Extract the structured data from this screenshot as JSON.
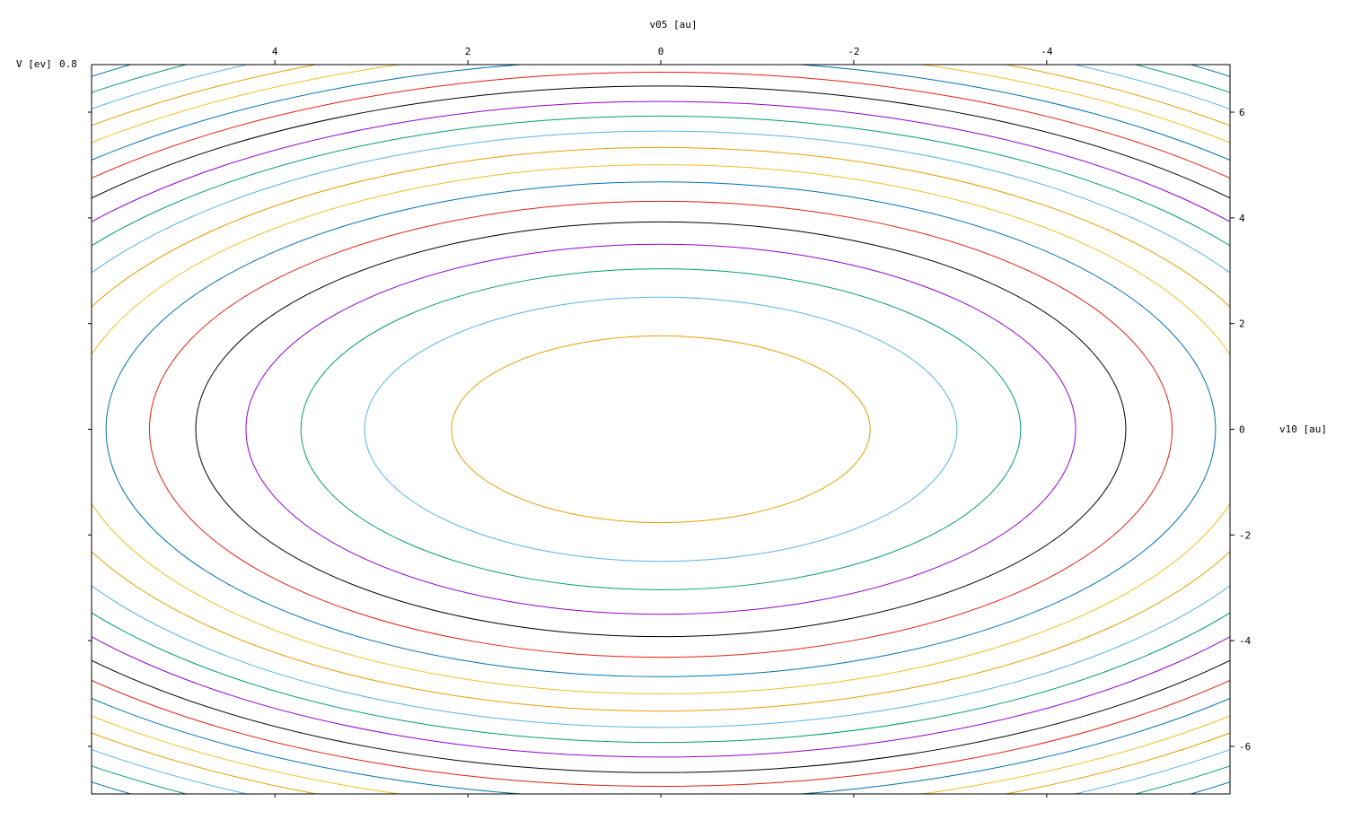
{
  "chart_data": {
    "type": "contour",
    "title": "",
    "top_axis_label": "v05 [au]",
    "right_axis_label": "v10 [au]",
    "colorbar_label": "V [ev]",
    "colorbar_overlapped_text": "0.8",
    "x_range": [
      5.9,
      -5.9
    ],
    "y_range": [
      -6.9,
      6.9
    ],
    "x_ticks": [
      4,
      2,
      0,
      -2,
      -4
    ],
    "x_tick_labels": [
      "4",
      "2",
      "0",
      "-2",
      "-4"
    ],
    "y_ticks": [
      6,
      4,
      2,
      0,
      -2,
      -4,
      -6
    ],
    "y_tick_labels": [
      "6",
      "4",
      "2",
      "0",
      "-2",
      "-4",
      "-6"
    ],
    "left_minor_ticks": [
      6,
      4,
      2,
      0,
      -2,
      -4,
      -6
    ],
    "bottom_minor_ticks": [
      4,
      2,
      0,
      -2,
      -4
    ],
    "grid": false,
    "ellipse_center": [
      0,
      0
    ],
    "ellipse_axis_ratio": 0.814,
    "contour_levels": [
      {
        "x_semi_axis": 2.17,
        "color": "#e69f00"
      },
      {
        "x_semi_axis": 3.07,
        "color": "#56b4e9"
      },
      {
        "x_semi_axis": 3.73,
        "color": "#009e73"
      },
      {
        "x_semi_axis": 4.3,
        "color": "#9400d3"
      },
      {
        "x_semi_axis": 4.82,
        "color": "#000000"
      },
      {
        "x_semi_axis": 5.3,
        "color": "#e51e10"
      },
      {
        "x_semi_axis": 5.75,
        "color": "#0072b2"
      },
      {
        "x_semi_axis": 6.15,
        "color": "#f0c020"
      },
      {
        "x_semi_axis": 6.55,
        "color": "#e69f00"
      },
      {
        "x_semi_axis": 6.93,
        "color": "#56b4e9"
      },
      {
        "x_semi_axis": 7.28,
        "color": "#009e73"
      },
      {
        "x_semi_axis": 7.62,
        "color": "#9400d3"
      },
      {
        "x_semi_axis": 7.98,
        "color": "#000000"
      },
      {
        "x_semi_axis": 8.3,
        "color": "#e51e10"
      },
      {
        "x_semi_axis": 8.6,
        "color": "#0072b2"
      },
      {
        "x_semi_axis": 8.9,
        "color": "#f0c020"
      },
      {
        "x_semi_axis": 9.2,
        "color": "#e69f00"
      },
      {
        "x_semi_axis": 9.5,
        "color": "#56b4e9"
      },
      {
        "x_semi_axis": 9.8,
        "color": "#009e73"
      },
      {
        "x_semi_axis": 10.1,
        "color": "#0072b2"
      }
    ]
  }
}
